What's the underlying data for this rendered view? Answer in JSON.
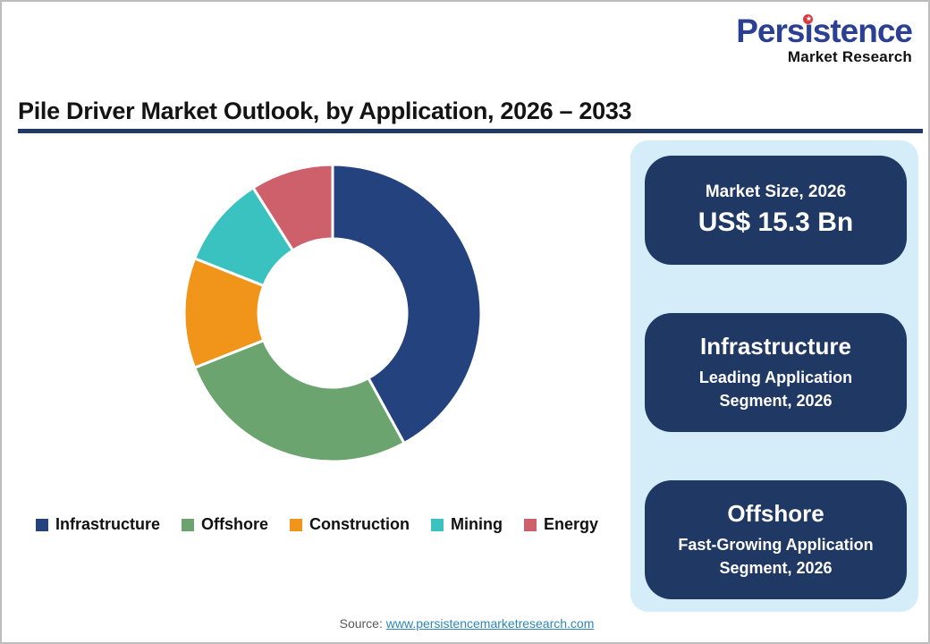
{
  "logo": {
    "text_before": "Pers",
    "dotless_i": "ı",
    "text_after": "stence",
    "star": "★",
    "line2": "Market Research"
  },
  "header": {
    "title": "Pile Driver Market Outlook, by Application, 2026 – 2033"
  },
  "chart_data": {
    "type": "pie",
    "variant": "donut",
    "title": "Pile Driver Market Outlook, by Application, 2026 – 2033",
    "unit": "% share of market, estimated from arc angles (no numeric labels shown)",
    "start_angle_deg": 0,
    "direction": "clockwise",
    "inner_radius_ratio": 0.5,
    "legend_position": "bottom",
    "segments": [
      {
        "label": "Infrastructure",
        "value": 42,
        "color": "#24437e"
      },
      {
        "label": "Offshore",
        "value": 27,
        "color": "#6ba46e"
      },
      {
        "label": "Construction",
        "value": 12,
        "color": "#f0941a"
      },
      {
        "label": "Mining",
        "value": 10,
        "color": "#39c2c0"
      },
      {
        "label": "Energy",
        "value": 9,
        "color": "#ce606b"
      }
    ]
  },
  "panel": {
    "background": "#d5ecf9",
    "card_color": "#1f3864",
    "cards": [
      {
        "title": "Market Size, 2026",
        "value": "US$ 15.3 Bn"
      },
      {
        "title": "Infrastructure",
        "subtitle": "Leading Application Segment, 2026"
      },
      {
        "title": "Offshore",
        "subtitle": "Fast-Growing Application Segment, 2026"
      }
    ]
  },
  "footer": {
    "source_label": "Source:",
    "source_link": "www.persistencemarketresearch.com"
  }
}
